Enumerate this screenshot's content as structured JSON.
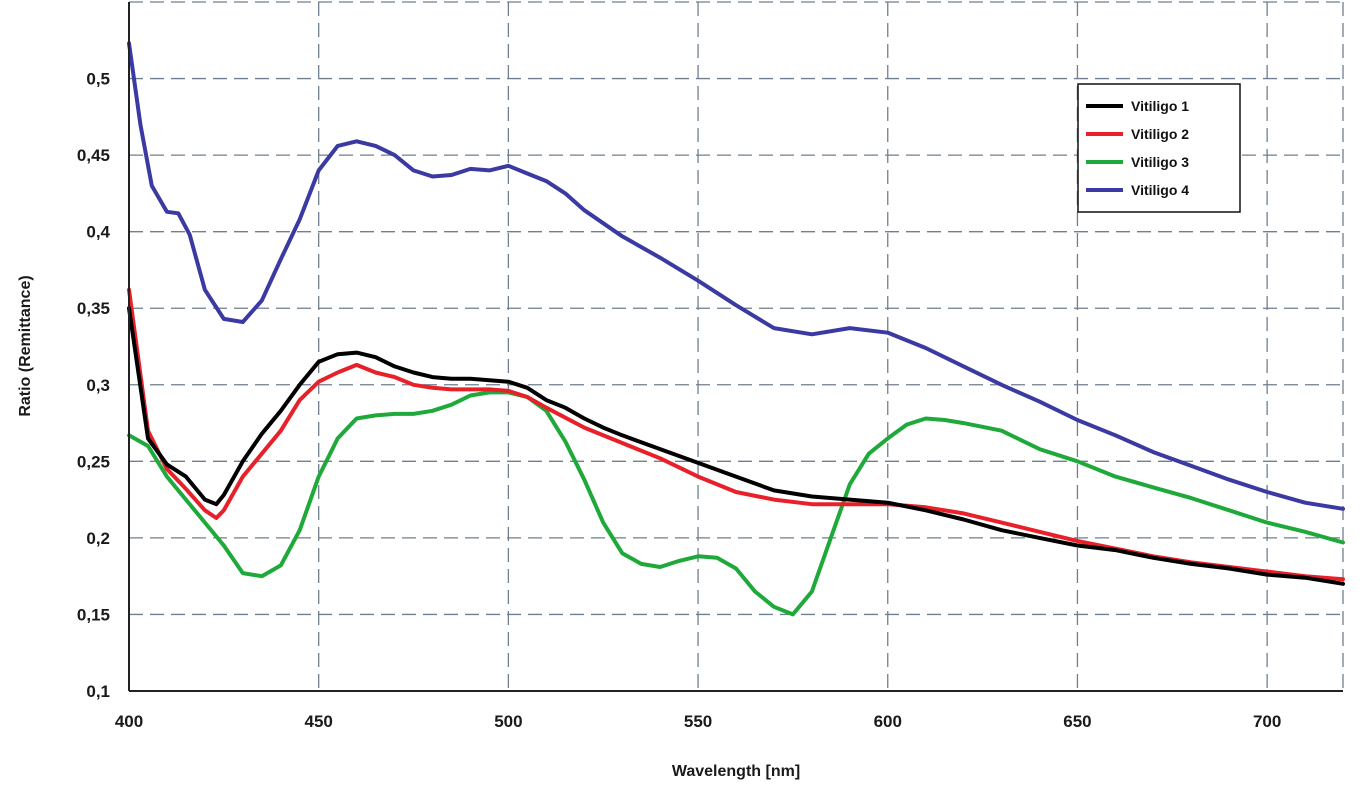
{
  "chart_data": {
    "type": "line",
    "title": "",
    "xlabel": "Wavelength [nm]",
    "ylabel": "Ratio (Remittance)",
    "xlim": [
      400,
      720
    ],
    "ylim": [
      0.1,
      0.55
    ],
    "grid": true,
    "legend_position": "top-right",
    "x_ticks": [
      400,
      450,
      500,
      550,
      600,
      650,
      700
    ],
    "x_tick_labels": [
      "400",
      "450",
      "500",
      "550",
      "600",
      "650",
      "700"
    ],
    "y_ticks": [
      0.1,
      0.15,
      0.2,
      0.25,
      0.3,
      0.35,
      0.4,
      0.45,
      0.5
    ],
    "y_tick_labels": [
      "0,1",
      "0,15",
      "0,2",
      "0,25",
      "0,3",
      "0,35",
      "0,4",
      "0,45",
      "0,5"
    ],
    "series": [
      {
        "name": "Vitiligo 1",
        "color": "#000000",
        "x": [
          400,
          405,
          410,
          415,
          420,
          423,
          425,
          430,
          435,
          440,
          445,
          450,
          455,
          460,
          465,
          470,
          475,
          480,
          485,
          490,
          495,
          500,
          505,
          510,
          515,
          520,
          525,
          530,
          540,
          550,
          560,
          570,
          580,
          590,
          600,
          610,
          620,
          630,
          640,
          650,
          660,
          670,
          680,
          690,
          700,
          710,
          720
        ],
        "y": [
          0.35,
          0.265,
          0.248,
          0.24,
          0.225,
          0.222,
          0.228,
          0.25,
          0.268,
          0.283,
          0.3,
          0.315,
          0.32,
          0.321,
          0.318,
          0.312,
          0.308,
          0.305,
          0.304,
          0.304,
          0.303,
          0.302,
          0.298,
          0.29,
          0.285,
          0.278,
          0.272,
          0.267,
          0.258,
          0.249,
          0.24,
          0.231,
          0.227,
          0.225,
          0.223,
          0.218,
          0.212,
          0.205,
          0.2,
          0.195,
          0.192,
          0.187,
          0.183,
          0.18,
          0.176,
          0.174,
          0.17
        ]
      },
      {
        "name": "Vitiligo 2",
        "color": "#e8202a",
        "x": [
          400,
          405,
          410,
          415,
          420,
          423,
          425,
          430,
          435,
          440,
          445,
          450,
          455,
          460,
          465,
          470,
          475,
          480,
          485,
          490,
          495,
          500,
          505,
          510,
          520,
          530,
          540,
          550,
          560,
          570,
          580,
          590,
          600,
          610,
          620,
          630,
          640,
          650,
          660,
          670,
          680,
          690,
          700,
          710,
          720
        ],
        "y": [
          0.362,
          0.27,
          0.245,
          0.232,
          0.218,
          0.213,
          0.218,
          0.24,
          0.255,
          0.27,
          0.29,
          0.302,
          0.308,
          0.313,
          0.308,
          0.305,
          0.3,
          0.298,
          0.297,
          0.297,
          0.297,
          0.296,
          0.292,
          0.285,
          0.272,
          0.262,
          0.252,
          0.24,
          0.23,
          0.225,
          0.222,
          0.222,
          0.222,
          0.22,
          0.216,
          0.21,
          0.204,
          0.198,
          0.193,
          0.188,
          0.184,
          0.181,
          0.178,
          0.175,
          0.173
        ]
      },
      {
        "name": "Vitiligo 3",
        "color": "#1fa93a",
        "x": [
          400,
          405,
          410,
          415,
          420,
          425,
          430,
          435,
          440,
          445,
          450,
          455,
          460,
          465,
          470,
          475,
          480,
          485,
          490,
          495,
          500,
          505,
          510,
          515,
          520,
          525,
          530,
          535,
          540,
          545,
          550,
          555,
          560,
          565,
          570,
          575,
          580,
          585,
          590,
          595,
          600,
          605,
          610,
          615,
          620,
          630,
          640,
          650,
          660,
          670,
          680,
          690,
          700,
          710,
          720
        ],
        "y": [
          0.267,
          0.26,
          0.24,
          0.225,
          0.21,
          0.195,
          0.177,
          0.175,
          0.182,
          0.205,
          0.24,
          0.265,
          0.278,
          0.28,
          0.281,
          0.281,
          0.283,
          0.287,
          0.293,
          0.295,
          0.295,
          0.292,
          0.283,
          0.263,
          0.238,
          0.21,
          0.19,
          0.183,
          0.181,
          0.185,
          0.188,
          0.187,
          0.18,
          0.165,
          0.155,
          0.15,
          0.165,
          0.2,
          0.235,
          0.255,
          0.265,
          0.274,
          0.278,
          0.277,
          0.275,
          0.27,
          0.258,
          0.25,
          0.24,
          0.233,
          0.226,
          0.218,
          0.21,
          0.204,
          0.197
        ]
      },
      {
        "name": "Vitiligo 4",
        "color": "#3b3aa3",
        "x": [
          400,
          403,
          406,
          410,
          413,
          416,
          420,
          425,
          430,
          435,
          440,
          445,
          450,
          455,
          460,
          465,
          470,
          475,
          480,
          485,
          490,
          495,
          500,
          505,
          510,
          515,
          520,
          530,
          540,
          550,
          560,
          570,
          580,
          590,
          600,
          610,
          620,
          630,
          640,
          650,
          660,
          670,
          680,
          690,
          700,
          710,
          720
        ],
        "y": [
          0.523,
          0.47,
          0.43,
          0.413,
          0.412,
          0.398,
          0.362,
          0.343,
          0.341,
          0.355,
          0.382,
          0.408,
          0.44,
          0.456,
          0.459,
          0.456,
          0.45,
          0.44,
          0.436,
          0.437,
          0.441,
          0.44,
          0.443,
          0.438,
          0.433,
          0.425,
          0.414,
          0.397,
          0.383,
          0.368,
          0.352,
          0.337,
          0.333,
          0.337,
          0.334,
          0.324,
          0.312,
          0.3,
          0.289,
          0.277,
          0.267,
          0.256,
          0.247,
          0.238,
          0.23,
          0.223,
          0.219
        ]
      }
    ]
  }
}
